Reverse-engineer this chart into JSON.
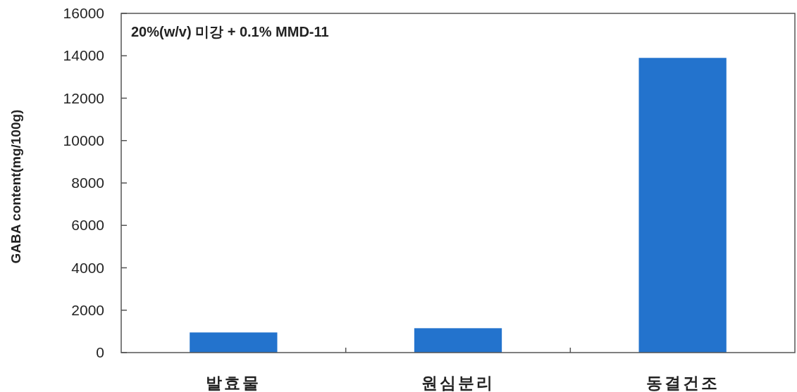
{
  "chart_data": {
    "type": "bar",
    "ylabel": "GABA content(mg/100g)",
    "annotations": [
      "20%(w/v) 미강 + 0.1% MMD-11"
    ],
    "categories": [
      "발효물",
      "원심분리",
      "동결건조"
    ],
    "values": [
      950,
      1150,
      13900
    ],
    "color": "#2373cd",
    "ylim": [
      0,
      16000
    ],
    "yticks": [
      0,
      2000,
      4000,
      6000,
      8000,
      10000,
      12000,
      14000,
      16000
    ],
    "grid": false
  }
}
